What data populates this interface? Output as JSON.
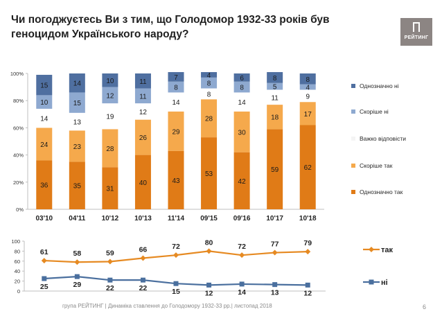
{
  "title": "Чи погоджуєтесь Ви з тим, що Голодомор 1932-33 років був геноцидом Українського народу?",
  "logo": {
    "text": "РЕЙТИНГ"
  },
  "footer": "група РЕЙТИНГ  | Динаміка ставлення до Голодомору 1932-33 рр.| листопад 2018",
  "page_number": "6",
  "colors": {
    "strong_no": "#4f6fa0",
    "rather_no": "#8ea9d0",
    "hard_to_say": "#ffffff",
    "rather_yes": "#f5a94c",
    "strong_yes": "#e07b17",
    "line_yes": "#e68a22",
    "line_no": "#4a6f9e"
  },
  "chart_data": [
    {
      "type": "bar",
      "stacked": true,
      "categories": [
        "03'10",
        "04'11",
        "10'12",
        "10'13",
        "11'14",
        "09'15",
        "09'16",
        "10'17",
        "10'18"
      ],
      "ylim": [
        0,
        100
      ],
      "yticks": [
        "0%",
        "20%",
        "40%",
        "60%",
        "80%",
        "100%"
      ],
      "series": [
        {
          "name": "Однозначно так",
          "key": "strong_yes",
          "values": [
            36,
            35,
            31,
            40,
            43,
            53,
            42,
            59,
            62
          ]
        },
        {
          "name": "Скоріше так",
          "key": "rather_yes",
          "values": [
            24,
            23,
            28,
            26,
            29,
            28,
            30,
            18,
            17
          ]
        },
        {
          "name": "Важко відповісти",
          "key": "hard_to_say",
          "values": [
            14,
            13,
            19,
            12,
            14,
            8,
            14,
            11,
            9
          ]
        },
        {
          "name": "Скоріше ні",
          "key": "rather_no",
          "values": [
            10,
            15,
            12,
            11,
            8,
            8,
            8,
            5,
            4
          ]
        },
        {
          "name": "Однозначно ні",
          "key": "strong_no",
          "values": [
            15,
            14,
            10,
            11,
            7,
            4,
            6,
            8,
            8
          ]
        }
      ]
    },
    {
      "type": "line",
      "ylim": [
        0,
        100
      ],
      "yticks": [
        "0",
        "20",
        "40",
        "60",
        "80",
        "100"
      ],
      "series": [
        {
          "name": "так",
          "key": "line_yes",
          "values": [
            61,
            58,
            59,
            66,
            72,
            80,
            72,
            77,
            79
          ]
        },
        {
          "name": "ні",
          "key": "line_no",
          "values": [
            25,
            29,
            22,
            22,
            15,
            12,
            14,
            13,
            12
          ]
        }
      ]
    }
  ]
}
